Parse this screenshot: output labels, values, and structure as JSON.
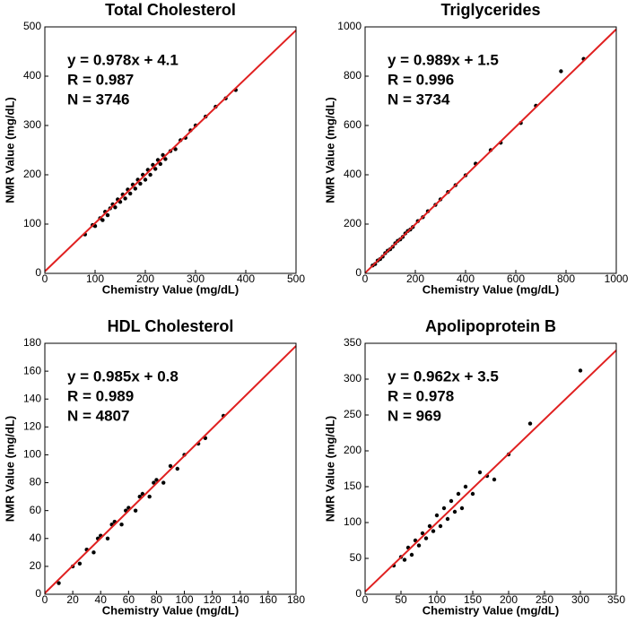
{
  "chart_data": [
    {
      "type": "scatter",
      "title": "Total Cholesterol",
      "x_label": "Chemistry Value (mg/dL)",
      "y_label": "NMR Value (mg/dL)",
      "annotations": [
        "y = 0.978x + 4.1",
        "R = 0.987",
        "N = 3746"
      ],
      "xlim": [
        0,
        500
      ],
      "ylim": [
        0,
        500
      ],
      "xticks": [
        0,
        100,
        200,
        300,
        400,
        500
      ],
      "yticks": [
        0,
        100,
        200,
        300,
        400,
        500
      ],
      "color": "#000000",
      "x": [
        80,
        95,
        100,
        110,
        115,
        120,
        125,
        130,
        135,
        140,
        145,
        150,
        155,
        160,
        165,
        170,
        175,
        180,
        185,
        190,
        195,
        200,
        205,
        210,
        215,
        220,
        225,
        230,
        235,
        240,
        250,
        260,
        270,
        280,
        290,
        300,
        320,
        340,
        360,
        380
      ],
      "y": [
        79,
        98,
        96,
        112,
        108,
        125,
        118,
        132,
        140,
        134,
        150,
        145,
        160,
        152,
        170,
        162,
        180,
        172,
        190,
        182,
        200,
        190,
        210,
        200,
        220,
        212,
        230,
        222,
        240,
        232,
        248,
        252,
        270,
        275,
        290,
        300,
        318,
        338,
        355,
        372
      ],
      "fit_line": {
        "color": "#e02020",
        "x": [
          0,
          500
        ],
        "y": [
          4.1,
          493.1
        ]
      }
    },
    {
      "type": "scatter",
      "title": "Triglycerides",
      "x_label": "Chemistry Value (mg/dL)",
      "y_label": "NMR Value (mg/dL)",
      "annotations": [
        "y = 0.989x + 1.5",
        "R = 0.996",
        "N = 3734"
      ],
      "xlim": [
        0,
        1000
      ],
      "ylim": [
        0,
        1000
      ],
      "xticks": [
        0,
        200,
        400,
        600,
        800,
        1000
      ],
      "yticks": [
        0,
        200,
        400,
        600,
        800,
        1000
      ],
      "color": "#000000",
      "x": [
        30,
        40,
        50,
        60,
        70,
        80,
        90,
        100,
        110,
        120,
        130,
        140,
        150,
        160,
        170,
        180,
        190,
        210,
        230,
        250,
        280,
        300,
        330,
        360,
        400,
        440,
        500,
        540,
        620,
        680,
        780,
        870
      ],
      "y": [
        32,
        38,
        52,
        58,
        68,
        82,
        92,
        98,
        108,
        122,
        132,
        138,
        148,
        162,
        172,
        178,
        188,
        212,
        228,
        252,
        278,
        300,
        330,
        358,
        398,
        445,
        500,
        530,
        610,
        680,
        820,
        870
      ],
      "fit_line": {
        "color": "#e02020",
        "x": [
          0,
          1000
        ],
        "y": [
          1.5,
          990.5
        ]
      }
    },
    {
      "type": "scatter",
      "title": "HDL Cholesterol",
      "x_label": "Chemistry Value (mg/dL)",
      "y_label": "NMR Value (mg/dL)",
      "annotations": [
        "y = 0.985x + 0.8",
        "R = 0.989",
        "N = 4807"
      ],
      "xlim": [
        0,
        180
      ],
      "ylim": [
        0,
        180
      ],
      "xticks": [
        0,
        20,
        40,
        60,
        80,
        100,
        120,
        140,
        160,
        180
      ],
      "yticks": [
        0,
        20,
        40,
        60,
        80,
        100,
        120,
        140,
        160,
        180
      ],
      "color": "#000000",
      "x": [
        10,
        20,
        25,
        30,
        35,
        38,
        40,
        45,
        48,
        50,
        55,
        58,
        60,
        65,
        68,
        70,
        75,
        78,
        80,
        85,
        90,
        95,
        100,
        110,
        115,
        128
      ],
      "y": [
        8,
        20,
        22,
        32,
        30,
        40,
        42,
        40,
        50,
        52,
        50,
        60,
        62,
        60,
        70,
        72,
        70,
        80,
        82,
        80,
        92,
        90,
        100,
        108,
        112,
        128
      ],
      "fit_line": {
        "color": "#e02020",
        "x": [
          0,
          180
        ],
        "y": [
          0.8,
          178.1
        ]
      }
    },
    {
      "type": "scatter",
      "title": "Apolipoprotein B",
      "x_label": "Chemistry Value (mg/dL)",
      "y_label": "NMR Value (mg/dL)",
      "annotations": [
        "y = 0.962x + 3.5",
        "R = 0.978",
        "N = 969"
      ],
      "xlim": [
        0,
        350
      ],
      "ylim": [
        0,
        350
      ],
      "xticks": [
        0,
        50,
        100,
        150,
        200,
        250,
        300,
        350
      ],
      "yticks": [
        0,
        50,
        100,
        150,
        200,
        250,
        300,
        350
      ],
      "color": "#000000",
      "x": [
        40,
        50,
        55,
        60,
        65,
        70,
        75,
        80,
        85,
        90,
        95,
        100,
        105,
        110,
        115,
        120,
        125,
        130,
        135,
        140,
        150,
        160,
        170,
        180,
        200,
        230,
        300
      ],
      "y": [
        40,
        52,
        48,
        65,
        55,
        75,
        68,
        85,
        78,
        95,
        88,
        110,
        95,
        120,
        105,
        130,
        115,
        140,
        120,
        150,
        140,
        170,
        165,
        160,
        195,
        238,
        312
      ],
      "fit_line": {
        "color": "#e02020",
        "x": [
          0,
          350
        ],
        "y": [
          3.5,
          340.2
        ]
      }
    }
  ]
}
